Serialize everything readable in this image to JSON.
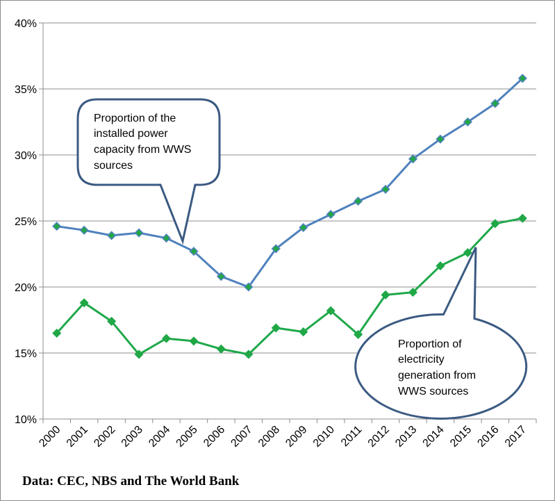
{
  "chart_data": {
    "type": "line",
    "categories": [
      "2000",
      "2001",
      "2002",
      "2003",
      "2004",
      "2005",
      "2006",
      "2007",
      "2008",
      "2009",
      "2010",
      "2011",
      "2012",
      "2013",
      "2014",
      "2015",
      "2016",
      "2017"
    ],
    "series": [
      {
        "name": "Proportion of the installed power capacity from WWS sources",
        "color": "#4f81bd",
        "marker_color": "#22a745",
        "values": [
          24.6,
          24.3,
          23.9,
          24.1,
          23.7,
          22.7,
          20.8,
          20.0,
          22.9,
          24.5,
          25.5,
          26.5,
          27.4,
          29.7,
          31.2,
          32.5,
          33.9,
          35.8
        ]
      },
      {
        "name": "Proportion of electricity generation from WWS sources",
        "color": "#1ea84a",
        "marker_color": "#22a745",
        "values": [
          16.5,
          18.8,
          17.4,
          14.9,
          16.1,
          15.9,
          15.3,
          14.9,
          16.9,
          16.6,
          18.2,
          16.4,
          19.4,
          19.6,
          21.6,
          22.6,
          24.8,
          25.2
        ]
      }
    ],
    "ylim": [
      10,
      40
    ],
    "yticks": [
      "10%",
      "15%",
      "20%",
      "25%",
      "30%",
      "35%",
      "40%"
    ],
    "grid": true,
    "legend": "none"
  },
  "callouts": {
    "capacity": [
      "Proportion of the",
      "installed power",
      "capacity from WWS",
      "sources"
    ],
    "generation": [
      "Proportion of",
      "electricity",
      "generation from",
      "WWS sources"
    ]
  },
  "source_note": "Data: CEC, NBS and The World  Bank",
  "colors": {
    "callout_border": "#3b5a82",
    "gridline": "#8c8c8c"
  }
}
